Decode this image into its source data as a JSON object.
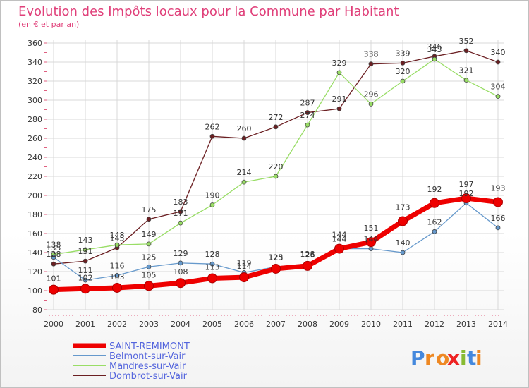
{
  "chart_data": {
    "type": "line",
    "title": "Evolution des Impôts locaux pour la Commune par Habitant",
    "subtitle": "(en € et par an)",
    "xlabel": "",
    "ylabel": "",
    "x": [
      2000,
      2001,
      2002,
      2003,
      2004,
      2005,
      2006,
      2007,
      2008,
      2009,
      2010,
      2011,
      2012,
      2013,
      2014
    ],
    "ylim": [
      80,
      360
    ],
    "yticks": [
      80,
      100,
      120,
      140,
      160,
      180,
      200,
      220,
      240,
      260,
      280,
      300,
      320,
      340,
      360
    ],
    "grid": true,
    "legend_position": "bottom-left",
    "series": [
      {
        "name": "Dombrot-sur-Vair",
        "color": "#6b1f22",
        "values": [
          128,
          131,
          145,
          175,
          183,
          262,
          260,
          272,
          287,
          291,
          338,
          339,
          346,
          352,
          340
        ]
      },
      {
        "name": "Mandres-sur-Vair",
        "color": "#99dd66",
        "values": [
          138,
          143,
          148,
          149,
          171,
          190,
          214,
          220,
          274,
          329,
          296,
          320,
          343,
          321,
          304
        ]
      },
      {
        "name": "Belmont-sur-Vair",
        "color": "#6699cc",
        "values": [
          135,
          111,
          116,
          125,
          129,
          128,
          119,
          125,
          128,
          144,
          144,
          140,
          162,
          192,
          166
        ]
      },
      {
        "name": "SAINT-REMIMONT",
        "color": "#ee0000",
        "values": [
          101,
          102,
          103,
          105,
          108,
          113,
          114,
          123,
          126,
          144,
          151,
          173,
          192,
          197,
          193
        ]
      }
    ],
    "legend_order": [
      "SAINT-REMIMONT",
      "Belmont-sur-Vair",
      "Mandres-sur-Vair",
      "Dombrot-sur-Vair"
    ]
  },
  "logo": {
    "text": "Proxiti",
    "letter_colors": [
      "#4488dd",
      "#ee8822",
      "#ee8822",
      "#ee2222",
      "#88bb33",
      "#4488dd",
      "#ee8822"
    ]
  }
}
